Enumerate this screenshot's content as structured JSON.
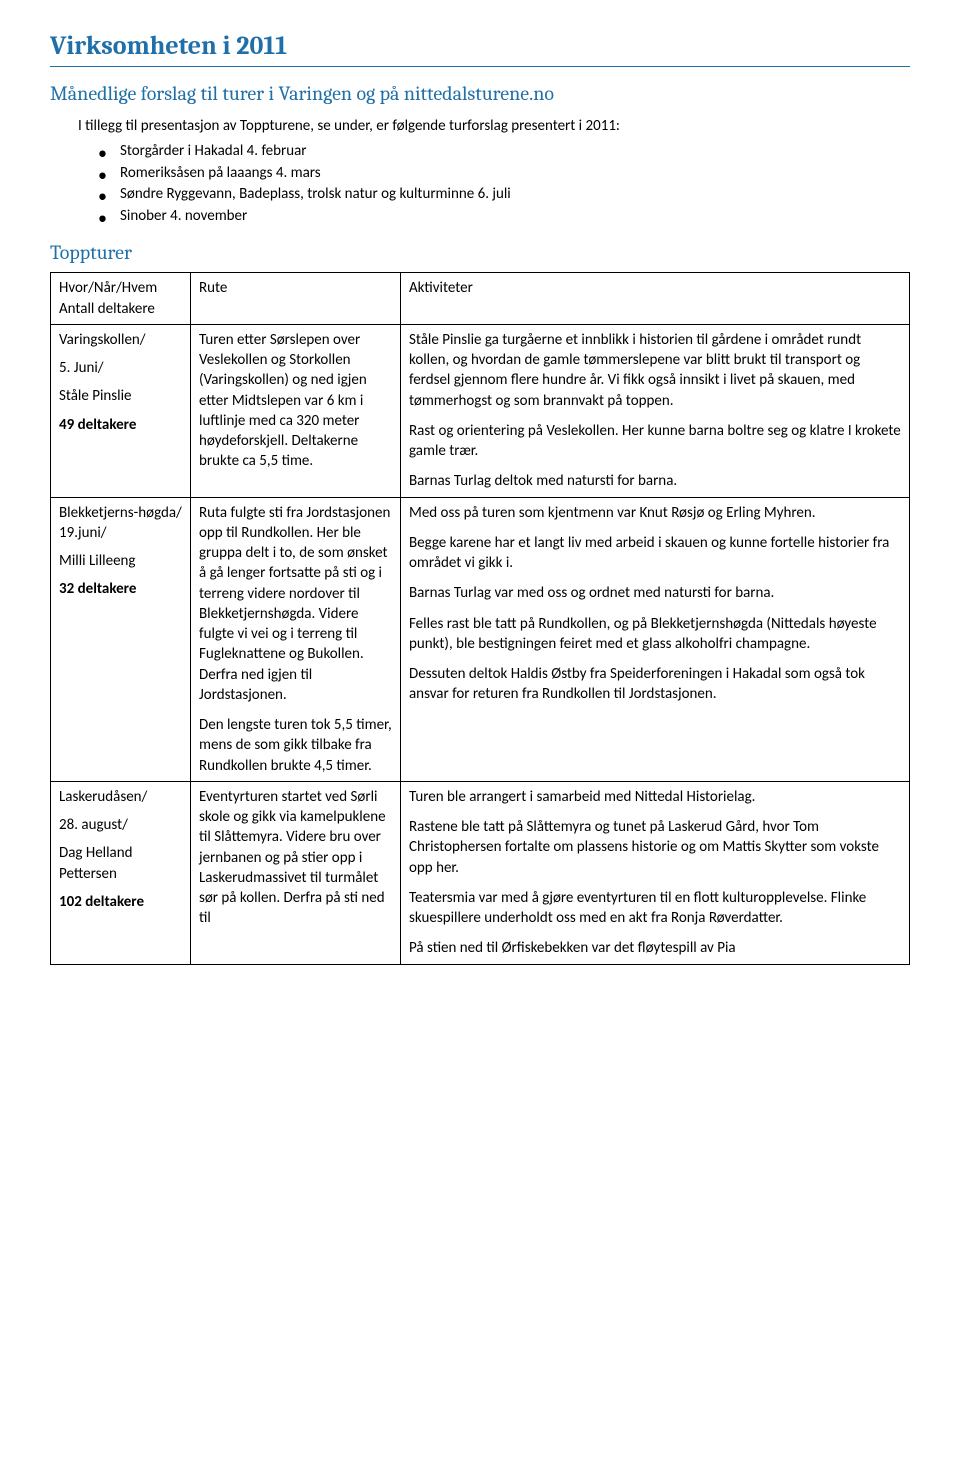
{
  "title": "Virksomheten i 2011",
  "subtitle": "Månedlige forslag til turer i Varingen og på nittedalsturene.no",
  "intro": "I tillegg til presentasjon av Toppturene, se under, er følgende turforslag presentert i 2011:",
  "bullets": [
    "Storgårder i Hakadal 4. februar",
    "Romeriksåsen på laaangs 4. mars",
    "Søndre Ryggevann, Badeplass, trolsk natur og kulturminne 6. juli",
    "Sinober  4. november"
  ],
  "section": "Toppturer",
  "header_row": {
    "c1a": "Hvor/Når/Hvem",
    "c1b": "Antall deltakere",
    "c2": "Rute",
    "c3": "Aktiviteter"
  },
  "rows": [
    {
      "c1": [
        {
          "text": "Varingskollen/"
        },
        {
          "text": "5. Juni/"
        },
        {
          "text": "Ståle Pinslie"
        },
        {
          "text": "49 deltakere",
          "bold": true
        }
      ],
      "c2": [
        "Turen etter Sørslepen over Veslekollen og Storkollen (Varingskollen) og ned igjen etter Midtslepen var 6 km i luftlinje med ca 320 meter høydeforskjell. Deltakerne brukte ca 5,5 time."
      ],
      "c3": [
        "Ståle Pinslie ga turgåerne et innblikk i historien til gårdene i området rundt kollen, og hvordan de gamle tømmerslepene var blitt brukt til transport og ferdsel gjennom flere hundre år.  Vi fikk også innsikt i livet på skauen, med tømmerhogst og som brannvakt på toppen.",
        "Rast og orientering på Veslekollen. Her kunne barna boltre seg og klatre I krokete gamle trær.",
        "Barnas Turlag deltok med natursti for barna."
      ]
    },
    {
      "c1": [
        {
          "text": "Blekketjerns-høgda/ 19.juni/"
        },
        {
          "text": "Milli Lilleeng"
        },
        {
          "text": "32 deltakere",
          "bold": true
        }
      ],
      "c2": [
        "Ruta fulgte sti fra Jordstasjonen opp til Rundkollen. Her ble gruppa delt i to, de som ønsket å gå lenger fortsatte på sti og i terreng videre nordover til Blekketjernshøgda. Videre fulgte vi vei og i terreng til Fugleknattene og Bukollen.  Derfra ned igjen til Jordstasjonen.",
        "Den lengste turen tok 5,5 timer, mens de som gikk tilbake fra Rundkollen brukte 4,5 timer."
      ],
      "c3": [
        "Med oss på turen som kjentmenn var Knut Røsjø og Erling Myhren.",
        "Begge karene har et langt liv med arbeid i skauen og kunne fortelle historier fra området vi gikk i.",
        "Barnas Turlag var med oss og ordnet med natursti for barna.",
        "Felles rast ble tatt på Rundkollen, og på Blekketjernshøgda (Nittedals høyeste punkt), ble bestigningen feiret med et glass alkoholfri champagne.",
        "Dessuten deltok Haldis Østby fra Speiderforeningen i Hakadal som også tok ansvar for returen fra Rundkollen til Jordstasjonen."
      ]
    },
    {
      "c1": [
        {
          "text": "Laskerudåsen/"
        },
        {
          "text": "28. august/"
        },
        {
          "text": "Dag Helland Pettersen"
        },
        {
          "text": "102 deltakere",
          "bold": true
        }
      ],
      "c2": [
        "Eventyrturen startet ved Sørli skole og gikk via kamelpuklene til Slåttemyra.  Videre bru over jernbanen og på stier opp i Laskerudmassivet til turmålet sør på kollen. Derfra på sti ned til"
      ],
      "c3": [
        "Turen ble arrangert i samarbeid med Nittedal Historielag.",
        "Rastene ble tatt på Slåttemyra og tunet på Laskerud Gård, hvor Tom Christophersen fortalte om plassens historie og om Mattis Skytter som vokste opp her.",
        "Teatersmia var med å gjøre eventyrturen til en flott kulturopplevelse.  Flinke skuespillere underholdt oss med en akt fra Ronja Røverdatter.",
        "På stien ned til Ørfiskebekken var det fløytespill  av Pia"
      ]
    }
  ]
}
